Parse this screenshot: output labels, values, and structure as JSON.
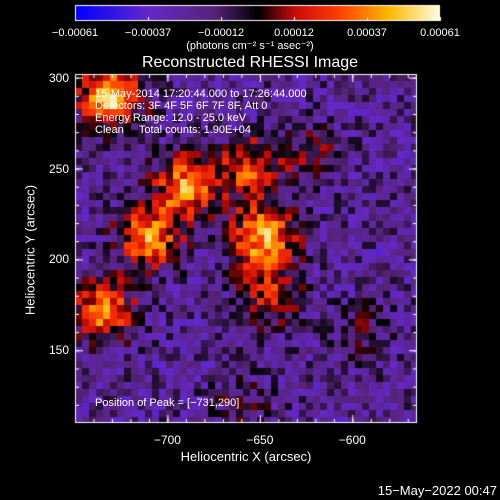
{
  "chart_data": {
    "type": "heatmap",
    "title": "Reconstructed RHESSI Image",
    "xlabel": "Heliocentric X (arcsec)",
    "ylabel": "Heliocentric Y (arcsec)",
    "xlim": [
      -750,
      -565
    ],
    "ylim": [
      110,
      302
    ],
    "xticks": [
      "−700",
      "−650",
      "−600"
    ],
    "xtick_values": [
      -700,
      -650,
      -600
    ],
    "yticks": [
      "300",
      "250",
      "200",
      "150"
    ],
    "ytick_values": [
      300,
      250,
      200,
      150
    ],
    "colorbar": {
      "ticks": [
        "−0.00061",
        "−0.00037",
        "−0.00012",
        "0.00012",
        "0.00037",
        "0.00061"
      ],
      "units": "(photons cm⁻² s⁻¹ asec⁻²)",
      "range": [
        -0.00061,
        0.00061
      ]
    },
    "annotations": [
      "15-May-2014 17:20:44.000 to 17:26:44.000",
      "Detectors: 3F 4F 5F 6F 7F 8F, Att 0",
      "Energy Range: 12.0 - 25.0 keV",
      "Clean     Total counts: 1.90E+04"
    ],
    "peak_label": "Position of Peak = [−731,290]",
    "sources": [
      {
        "x": -731,
        "y": 290,
        "value": 0.00061
      },
      {
        "x": -690,
        "y": 240,
        "value": 0.00052
      },
      {
        "x": -655,
        "y": 250,
        "value": 0.0004
      },
      {
        "x": -648,
        "y": 212,
        "value": 0.00058
      },
      {
        "x": -710,
        "y": 212,
        "value": 0.0005
      },
      {
        "x": -735,
        "y": 172,
        "value": 0.00048
      },
      {
        "x": -645,
        "y": 180,
        "value": 0.00032
      },
      {
        "x": -620,
        "y": 260,
        "value": 0.00018
      },
      {
        "x": -595,
        "y": 160,
        "value": 0.00015
      },
      {
        "x": -660,
        "y": 120,
        "value": 0.00014
      }
    ]
  },
  "footer": "15−May−2022 00:47"
}
